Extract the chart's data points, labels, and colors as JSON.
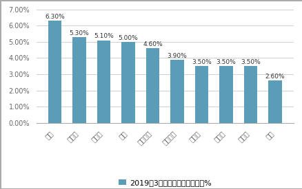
{
  "categories": [
    "锐澳",
    "轩尼诗",
    "马爹利",
    "野格",
    "噶尼获加",
    "杰克丹尼",
    "人头马",
    "三得利",
    "芝华士",
    "懒熊"
  ],
  "values": [
    6.3,
    5.3,
    5.1,
    5.0,
    4.6,
    3.9,
    3.5,
    3.5,
    3.5,
    2.6
  ],
  "bar_color": "#5b9db8",
  "ylim": [
    0,
    7.0
  ],
  "yticks": [
    0.0,
    1.0,
    2.0,
    3.0,
    4.0,
    5.0,
    6.0,
    7.0
  ],
  "legend_label": "2019年3月洋酒网络零售额占比%",
  "value_labels": [
    "6.30%",
    "5.30%",
    "5.10%",
    "5.00%",
    "4.60%",
    "3.90%",
    "3.50%",
    "3.50%",
    "3.50%",
    "2.60%"
  ],
  "background_color": "#ffffff",
  "grid_color": "#d0d0d0",
  "border_color": "#aaaaaa",
  "label_fontsize": 7,
  "value_fontsize": 6.5,
  "legend_fontsize": 8,
  "tick_color": "#666666"
}
